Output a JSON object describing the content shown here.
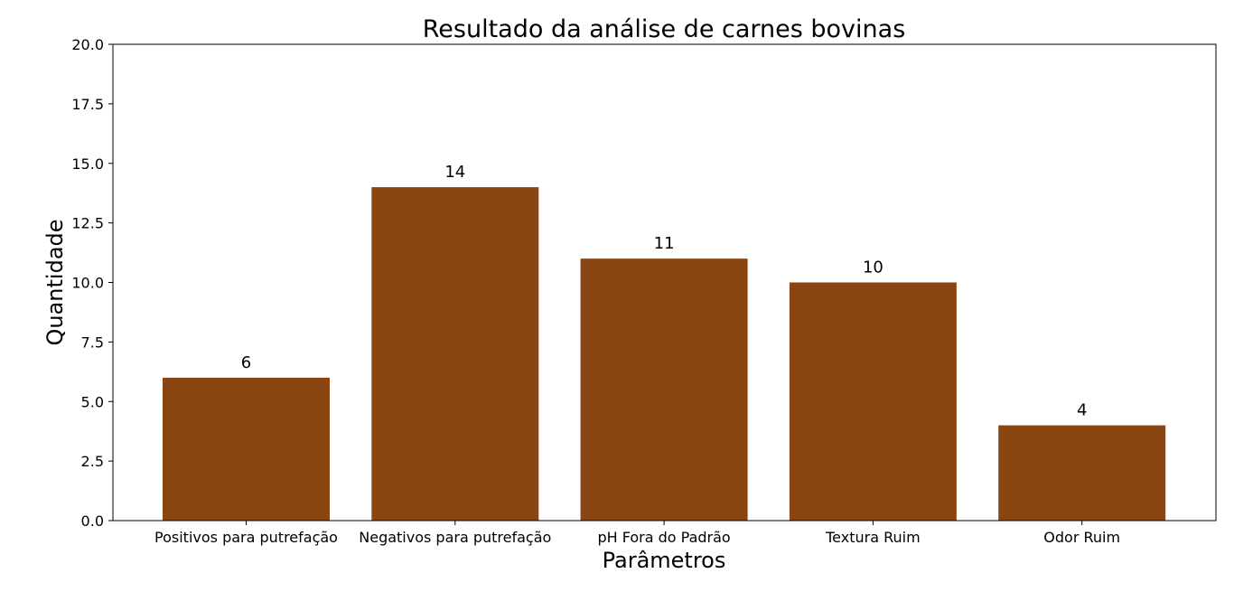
{
  "chart_data": {
    "type": "bar",
    "title": "Resultado da análise de carnes bovinas",
    "xlabel": "Parâmetros",
    "ylabel": "Quantidade",
    "categories": [
      "Positivos para putrefação",
      "Negativos para putrefação",
      "pH Fora do Padrão",
      "Textura Ruim",
      "Odor Ruim"
    ],
    "values": [
      6,
      14,
      11,
      10,
      4
    ],
    "data_labels": [
      "6",
      "14",
      "11",
      "10",
      "4"
    ],
    "ylim": [
      0,
      20
    ],
    "yticks": [
      "0.0",
      "2.5",
      "5.0",
      "7.5",
      "10.0",
      "12.5",
      "15.0",
      "17.5",
      "20.0"
    ],
    "bar_color": "#8B4513",
    "grid": false,
    "legend": "none"
  }
}
